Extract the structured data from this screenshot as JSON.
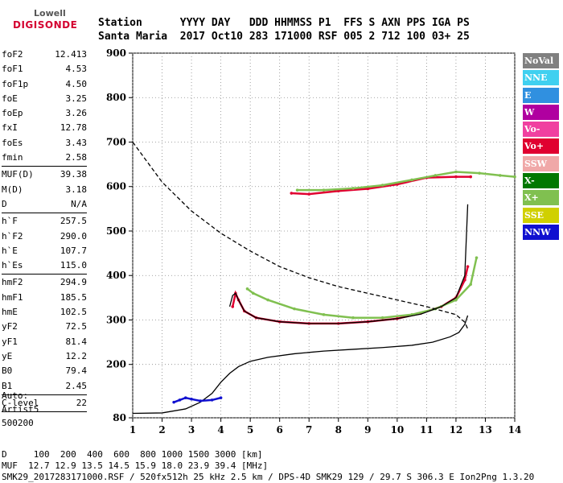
{
  "logo": {
    "line1": "Lowell",
    "line2": "DIGISONDE"
  },
  "header": {
    "row1": [
      "Station",
      "YYYY",
      "DAY",
      "DDD",
      "HHMMSS",
      "P1",
      "FFS",
      "S",
      "AXN",
      "PPS",
      "IGA",
      "PS"
    ],
    "row2": [
      "Santa Maria",
      "2017",
      "Oct10",
      "283",
      "171000",
      "RSF",
      "005",
      "2",
      "712",
      "100",
      "03+",
      "25"
    ]
  },
  "params": [
    {
      "k": "foF2",
      "v": "12.413"
    },
    {
      "k": "foF1",
      "v": "4.53"
    },
    {
      "k": "foF1p",
      "v": "4.50"
    },
    {
      "k": "foE",
      "v": "3.25"
    },
    {
      "k": "foEp",
      "v": "3.26"
    },
    {
      "k": "fxI",
      "v": "12.78"
    },
    {
      "k": "foEs",
      "v": "3.43"
    },
    {
      "k": "fmin",
      "v": "2.58"
    },
    {
      "sep": true
    },
    {
      "k": "MUF(D)",
      "v": "39.38"
    },
    {
      "k": "M(D)",
      "v": "3.18"
    },
    {
      "k": "D",
      "v": "N/A"
    },
    {
      "sep": true
    },
    {
      "k": "h`F",
      "v": "257.5"
    },
    {
      "k": "h`F2",
      "v": "290.0"
    },
    {
      "k": "h`E",
      "v": "107.7"
    },
    {
      "k": "h`Es",
      "v": "115.0"
    },
    {
      "sep": true
    },
    {
      "k": "hmF2",
      "v": "294.9"
    },
    {
      "k": "hmF1",
      "v": "185.5"
    },
    {
      "k": "hmE",
      "v": "102.5"
    },
    {
      "k": "yF2",
      "v": "72.5"
    },
    {
      "k": "yF1",
      "v": "81.4"
    },
    {
      "k": "yE",
      "v": "12.2"
    },
    {
      "k": "B0",
      "v": "79.4"
    },
    {
      "k": "B1",
      "v": "2.45"
    },
    {
      "sep": true
    },
    {
      "k": "C-level",
      "v": "22"
    },
    {
      "sep": true
    }
  ],
  "auto": {
    "line1": "Auto:",
    "line2": "Artist5",
    "line3": "500200"
  },
  "legend": [
    {
      "label": "NoVal",
      "color": "#808080"
    },
    {
      "label": "NNE",
      "color": "#40d0f0"
    },
    {
      "label": "E",
      "color": "#3090e0"
    },
    {
      "label": "W",
      "color": "#b000a0"
    },
    {
      "label": "Vo-",
      "color": "#f040a0"
    },
    {
      "label": "Vo+",
      "color": "#e00030"
    },
    {
      "label": "SSW",
      "color": "#f0a8a8"
    },
    {
      "label": "X-",
      "color": "#007800"
    },
    {
      "label": "X+",
      "color": "#80c050"
    },
    {
      "label": "SSE",
      "color": "#d0d000"
    },
    {
      "label": "NNW",
      "color": "#1010d0"
    }
  ],
  "footer": {
    "line1": "D     100  200  400  600  800 1000 1500 3000 [km]",
    "line2": "MUF  12.7 12.9 13.5 14.5 15.9 18.0 23.9 39.4 [MHz]",
    "line3": "SMK29_2017283171000.RSF / 520fx512h 25 kHz 2.5 km / DPS-4D SMK29 129 / 29.7 S 306.3 E Ion2Png 1.3.20"
  },
  "chart_data": {
    "type": "scatter",
    "xlim": [
      1,
      14
    ],
    "ylim": [
      80,
      900
    ],
    "xticks": [
      1,
      2,
      3,
      4,
      5,
      6,
      7,
      8,
      9,
      10,
      11,
      12,
      13,
      14
    ],
    "yticks": [
      80,
      200,
      300,
      400,
      500,
      600,
      700,
      800,
      900
    ],
    "grid": "dotted",
    "legend_position": "right",
    "series": [
      {
        "name": "Vo+",
        "color": "#e00030",
        "x": [
          4.4,
          4.5,
          4.6,
          4.8,
          5.2,
          6,
          7,
          8,
          9,
          10,
          10.8,
          11.5,
          12,
          12.3,
          12.4
        ],
        "y": [
          330,
          360,
          345,
          320,
          305,
          296,
          292,
          292,
          296,
          303,
          315,
          330,
          350,
          390,
          420
        ]
      },
      {
        "name": "X+",
        "color": "#80c050",
        "x": [
          4.9,
          5.1,
          5.6,
          6.5,
          7.5,
          8.5,
          9.5,
          10.5,
          11.3,
          12,
          12.5,
          12.7
        ],
        "y": [
          370,
          360,
          345,
          325,
          312,
          305,
          305,
          312,
          325,
          345,
          380,
          440
        ]
      },
      {
        "name": "Vo+ (multiple)",
        "color": "#e00030",
        "x": [
          6.4,
          7,
          8,
          9,
          10,
          11,
          12,
          12.5
        ],
        "y": [
          585,
          583,
          590,
          595,
          605,
          620,
          622,
          622
        ]
      },
      {
        "name": "X+ (multiple)",
        "color": "#80c050",
        "x": [
          6.6,
          7.5,
          8.5,
          9.5,
          10.5,
          11.3,
          12,
          12.8,
          13.5,
          14
        ],
        "y": [
          592,
          592,
          596,
          603,
          615,
          625,
          633,
          630,
          625,
          622
        ]
      },
      {
        "name": "profile",
        "color": "#000000",
        "x": [
          1,
          2,
          2.8,
          3.3,
          3.7,
          4,
          4.3,
          4.6,
          5,
          5.6,
          6.5,
          7.5,
          8.5,
          9.5,
          10.5,
          11.2,
          11.8,
          12.1,
          12.3,
          12.4
        ],
        "y": [
          90,
          91,
          100,
          115,
          135,
          160,
          180,
          195,
          207,
          216,
          224,
          230,
          234,
          238,
          243,
          250,
          262,
          272,
          290,
          310
        ]
      },
      {
        "name": "virtual height trace",
        "color": "#000000",
        "x": [
          4.3,
          4.4,
          4.5,
          4.6,
          4.8,
          5.2,
          6,
          7,
          8,
          9,
          10,
          10.8,
          11.5,
          12,
          12.3,
          12.4
        ],
        "y": [
          330,
          355,
          360,
          345,
          320,
          305,
          296,
          292,
          292,
          296,
          303,
          313,
          330,
          350,
          400,
          560
        ]
      },
      {
        "name": "MUF",
        "color": "#000000",
        "dashed": true,
        "x": [
          1,
          2,
          3,
          4,
          5,
          6,
          7,
          8,
          9,
          10,
          11,
          12,
          12.3,
          12.4
        ],
        "y": [
          700,
          610,
          545,
          495,
          455,
          420,
          395,
          375,
          360,
          345,
          330,
          312,
          295,
          280
        ]
      },
      {
        "name": "E layer",
        "color": "#1010d0",
        "x": [
          2.4,
          2.6,
          2.8,
          3.0,
          3.3,
          3.7,
          4.0
        ],
        "y": [
          115,
          120,
          125,
          122,
          118,
          120,
          125
        ]
      }
    ]
  }
}
